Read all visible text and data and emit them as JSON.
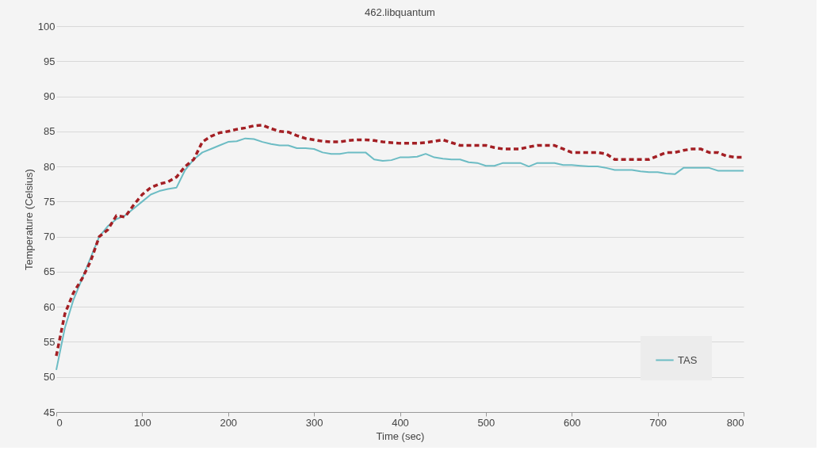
{
  "chart_data": {
    "type": "line",
    "title": "462.libquantum",
    "xlabel": "Time (sec)",
    "ylabel": "Temperature (Celsius)",
    "x": [
      0,
      10,
      20,
      30,
      40,
      50,
      60,
      70,
      80,
      90,
      100,
      110,
      120,
      130,
      140,
      150,
      160,
      170,
      180,
      190,
      200,
      210,
      220,
      230,
      240,
      250,
      260,
      270,
      280,
      290,
      300,
      310,
      320,
      330,
      340,
      350,
      360,
      370,
      380,
      390,
      400,
      410,
      420,
      430,
      440,
      450,
      460,
      470,
      480,
      490,
      500,
      510,
      520,
      530,
      540,
      550,
      560,
      570,
      580,
      590,
      600,
      610,
      620,
      630,
      640,
      650,
      660,
      670,
      680,
      690,
      700,
      710,
      720,
      730,
      740,
      750,
      760,
      770,
      780,
      790,
      800
    ],
    "series": [
      {
        "name": "TAS",
        "color": "#6cbcc4",
        "line_style": "solid",
        "values": [
          51,
          57,
          61,
          64,
          67,
          70,
          71.5,
          72.5,
          73,
          74,
          75,
          76,
          76.5,
          76.8,
          77,
          79.5,
          81,
          82,
          82.5,
          83,
          83.5,
          83.6,
          84,
          83.9,
          83.5,
          83.2,
          83,
          83,
          82.6,
          82.6,
          82.5,
          82,
          81.8,
          81.8,
          82,
          82,
          82,
          81,
          80.8,
          80.9,
          81.3,
          81.3,
          81.4,
          81.8,
          81.3,
          81.1,
          81,
          81,
          80.6,
          80.5,
          80.1,
          80.1,
          80.5,
          80.5,
          80.5,
          80,
          80.5,
          80.5,
          80.5,
          80.2,
          80.2,
          80.1,
          80,
          80,
          79.8,
          79.5,
          79.5,
          79.5,
          79.3,
          79.2,
          79.2,
          79,
          78.9,
          79.8,
          79.8,
          79.8,
          79.8,
          79.4,
          79.4,
          79.4,
          79.4
        ]
      },
      {
        "color": "#a31f24",
        "line_style": "dashed",
        "values": [
          53,
          59,
          62,
          64,
          66.5,
          70,
          71,
          73,
          72.8,
          74.5,
          76,
          77,
          77.5,
          77.8,
          78.5,
          80,
          81,
          83.5,
          84.3,
          84.8,
          85,
          85.3,
          85.5,
          85.8,
          85.9,
          85.4,
          85,
          84.9,
          84.4,
          84,
          83.8,
          83.6,
          83.5,
          83.5,
          83.7,
          83.8,
          83.8,
          83.7,
          83.5,
          83.4,
          83.3,
          83.3,
          83.3,
          83.4,
          83.6,
          83.8,
          83.4,
          83,
          83,
          83,
          83,
          82.7,
          82.5,
          82.5,
          82.5,
          82.8,
          83,
          83,
          83,
          82.5,
          82,
          82,
          82,
          82,
          81.8,
          81,
          81,
          81,
          81,
          81,
          81.5,
          82,
          82,
          82.3,
          82.5,
          82.5,
          82,
          82,
          81.5,
          81.3,
          81.3
        ]
      }
    ],
    "xlim": [
      0,
      800
    ],
    "xticks": [
      0,
      100,
      200,
      300,
      400,
      500,
      600,
      700,
      800
    ],
    "ylim": [
      45,
      100
    ],
    "yticks": [
      45,
      50,
      55,
      60,
      65,
      70,
      75,
      80,
      85,
      90,
      95,
      100
    ],
    "grid": "y",
    "legend": "bottom right",
    "marker": "none"
  }
}
